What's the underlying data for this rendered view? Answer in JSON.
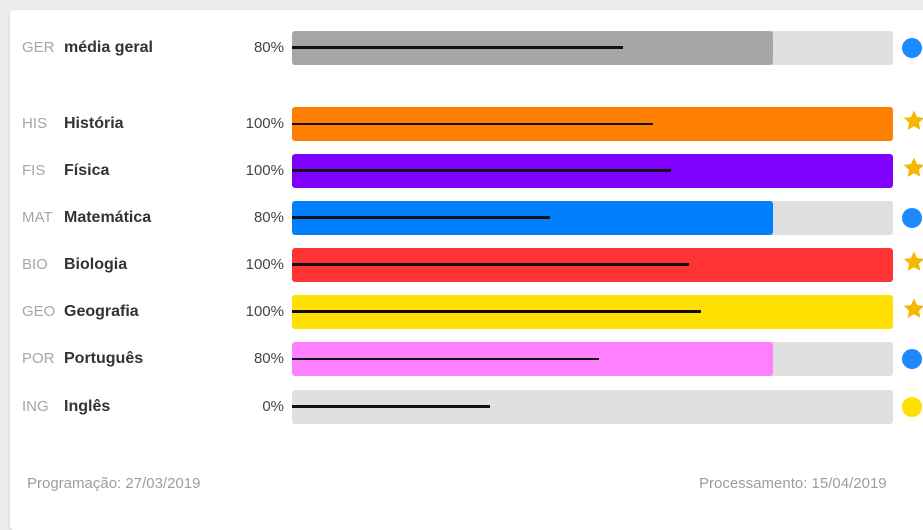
{
  "rows": [
    {
      "code": "GER",
      "name": "média geral",
      "pct_label": "80%",
      "value": 80,
      "marker": 55,
      "color": "#a6a6a6",
      "indicator": "dot",
      "indicator_color": "#1e88ff",
      "thick": true
    },
    {
      "code": "HIS",
      "name": "História",
      "pct_label": "100%",
      "value": 100,
      "marker": 60,
      "color": "#ff8000",
      "indicator": "star",
      "indicator_color": "#f5b800",
      "thick": false
    },
    {
      "code": "FIS",
      "name": "Física",
      "pct_label": "100%",
      "value": 100,
      "marker": 63,
      "color": "#8000ff",
      "indicator": "star",
      "indicator_color": "#f5b800",
      "thick": true
    },
    {
      "code": "MAT",
      "name": "Matemática",
      "pct_label": "80%",
      "value": 80,
      "marker": 43,
      "color": "#0080ff",
      "indicator": "dot",
      "indicator_color": "#1e88ff",
      "thick": true
    },
    {
      "code": "BIO",
      "name": "Biologia",
      "pct_label": "100%",
      "value": 100,
      "marker": 66,
      "color": "#ff3333",
      "indicator": "star",
      "indicator_color": "#f5b800",
      "thick": true
    },
    {
      "code": "GEO",
      "name": "Geografia",
      "pct_label": "100%",
      "value": 100,
      "marker": 68,
      "color": "#ffe000",
      "indicator": "star",
      "indicator_color": "#f5b800",
      "thick": true
    },
    {
      "code": "POR",
      "name": "Português",
      "pct_label": "80%",
      "value": 80,
      "marker": 51,
      "color": "#ff80ff",
      "indicator": "dot",
      "indicator_color": "#1e88ff",
      "thick": false
    },
    {
      "code": "ING",
      "name": "Inglês",
      "pct_label": "0%",
      "value": 0,
      "marker": 33,
      "color": "#e0e0e0",
      "indicator": "dot",
      "indicator_color": "#ffe000",
      "thick": true
    }
  ],
  "footer": {
    "programacao": "Programação: 27/03/2019",
    "processamento": "Processamento: 15/04/2019"
  }
}
